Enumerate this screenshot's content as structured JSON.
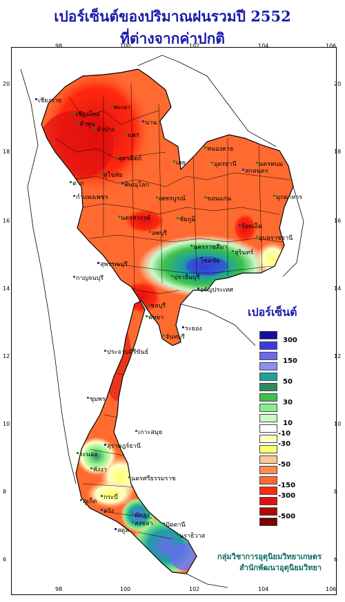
{
  "title": {
    "line1": "เปอร์เซ็นต์ของปริมาณฝนรวมปี 2552",
    "line2": "ที่ต่างจากค่าปกติ"
  },
  "axes": {
    "x_ticks": [
      "98",
      "100",
      "102",
      "104",
      "106"
    ],
    "y_ticks": [
      "20",
      "18",
      "16",
      "14",
      "12",
      "10",
      "8",
      "6"
    ]
  },
  "legend": {
    "title": "เปอร์เซ็นต์",
    "labels": [
      "300",
      "150",
      "50",
      "30",
      "10",
      "-10",
      "-30",
      "-50",
      "-150",
      "-300",
      "-500"
    ],
    "colors": [
      "#1212a0",
      "#3a3ae0",
      "#6a6af0",
      "#8a90f0",
      "#1ea0a0",
      "#2c8a5c",
      "#3ec04a",
      "#88ee88",
      "#c8fac8",
      "#ffffff",
      "#ffffc8",
      "#ffff6a",
      "#ffc890",
      "#ff8c50",
      "#ff6a30",
      "#ff2a10",
      "#e01010",
      "#b00808",
      "#780404"
    ]
  },
  "credits": {
    "line1": "กลุ่มวิชาการอุตุนิยมวิทยาเกษตร",
    "line2": "สำนักพัฒนาอุตุนิยมวิทยา"
  },
  "provinces": [
    {
      "name": "เชียงราย",
      "cls": "north"
    },
    {
      "name": "เชียงใหม่",
      "cls": "north"
    },
    {
      "name": "ลำพูน",
      "cls": "north"
    },
    {
      "name": "ลำปาง",
      "cls": "north"
    },
    {
      "name": "พะเยา",
      "cls": "north"
    },
    {
      "name": "น่าน",
      "cls": "north"
    },
    {
      "name": "แพร่",
      "cls": "north"
    },
    {
      "name": "อุตรดิตถ์",
      "cls": "north"
    },
    {
      "name": "ตาก",
      "cls": "north"
    },
    {
      "name": "สุโขทัย",
      "cls": "north"
    },
    {
      "name": "พิษณุโลก",
      "cls": "north"
    },
    {
      "name": "กำแพงเพชร",
      "cls": "north"
    },
    {
      "name": "เพชรบูรณ์",
      "cls": "north"
    },
    {
      "name": "นครสวรรค์",
      "cls": "central"
    },
    {
      "name": "ลพบุรี",
      "cls": "central"
    },
    {
      "name": "สุพรรณบุรี",
      "cls": "central"
    },
    {
      "name": "กาญจนบุรี",
      "cls": "central"
    },
    {
      "name": "ปราจีนบุรี",
      "cls": "east"
    },
    {
      "name": "ชลบุรี",
      "cls": "east"
    },
    {
      "name": "พัทยา",
      "cls": "east"
    },
    {
      "name": "ระยอง",
      "cls": "east"
    },
    {
      "name": "จันทบุรี",
      "cls": "east"
    },
    {
      "name": "หนองคาย",
      "cls": "ne"
    },
    {
      "name": "อุดรธานี",
      "cls": "ne"
    },
    {
      "name": "นครพนม",
      "cls": "ne"
    },
    {
      "name": "สกลนคร",
      "cls": "ne"
    },
    {
      "name": "มุกดาหาร",
      "cls": "ne"
    },
    {
      "name": "เลย",
      "cls": "ne"
    },
    {
      "name": "ขอนแก่น",
      "cls": "ne"
    },
    {
      "name": "ชัยภูมิ",
      "cls": "ne"
    },
    {
      "name": "ร้อยเอ็ด",
      "cls": "ne"
    },
    {
      "name": "อุบลราชธานี",
      "cls": "ne"
    },
    {
      "name": "นครราชสีมา",
      "cls": "ne"
    },
    {
      "name": "สุรินทร์",
      "cls": "ne"
    },
    {
      "name": "โชคชัย",
      "cls": "ne"
    },
    {
      "name": "อรัญประเทศ",
      "cls": "east"
    },
    {
      "name": "ประจวบคีรีขันธ์",
      "cls": "south"
    },
    {
      "name": "ชุมพร",
      "cls": "south"
    },
    {
      "name": "เกาะสมุย",
      "cls": "south"
    },
    {
      "name": "ระนอง",
      "cls": "south"
    },
    {
      "name": "สุราษฎร์ธานี",
      "cls": "south"
    },
    {
      "name": "พังงา",
      "cls": "south"
    },
    {
      "name": "นครศรีธรรมราช",
      "cls": "south"
    },
    {
      "name": "ภูเก็ต",
      "cls": "south"
    },
    {
      "name": "กระบี่",
      "cls": "south"
    },
    {
      "name": "ตรัง",
      "cls": "south"
    },
    {
      "name": "พัทลุง",
      "cls": "south"
    },
    {
      "name": "สงขลา",
      "cls": "south"
    },
    {
      "name": "ปัตตานี",
      "cls": "south"
    },
    {
      "name": "นราธิวาส",
      "cls": "south"
    },
    {
      "name": "สตูล",
      "cls": "south"
    }
  ]
}
